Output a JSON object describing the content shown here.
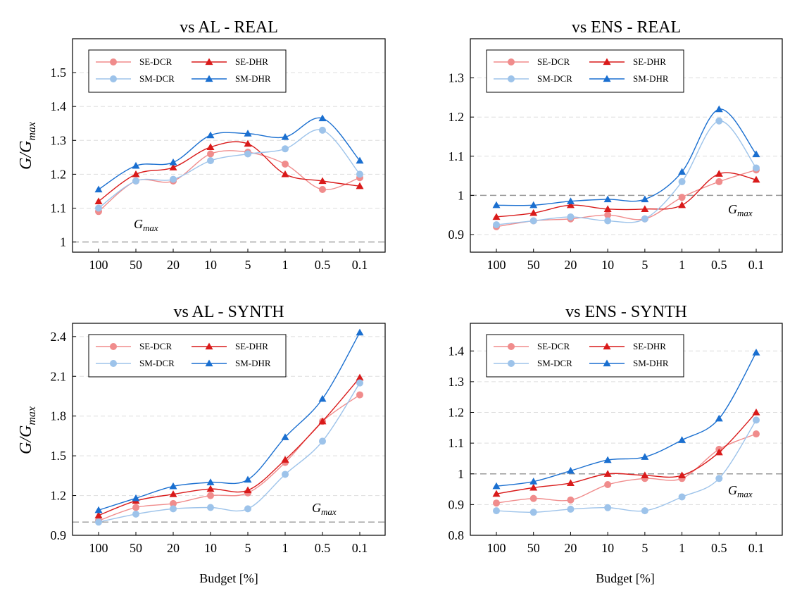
{
  "figure": {
    "ylabel_text": "G/G",
    "ylabel_sub": "max",
    "xlabel": "Budget [%]",
    "gmax_label": "G",
    "gmax_sub": "max"
  },
  "colors": {
    "SE-DCR": "#f08c8c",
    "SM-DCR": "#9dc3ea",
    "SE-DHR": "#d91a1a",
    "SM-DHR": "#1a6fd0",
    "reference": "#9a9a9a",
    "grid": "#dddddd"
  },
  "chart_data": [
    {
      "type": "line",
      "title": "vs AL - REAL",
      "categories": [
        "100",
        "50",
        "20",
        "10",
        "5",
        "1",
        "0.5",
        "0.1"
      ],
      "ylim": [
        0.97,
        1.6
      ],
      "yticks": [
        1,
        1.1,
        1.2,
        1.3,
        1.4,
        1.5
      ],
      "ytick_labels": [
        "1",
        "1.1",
        "1.2",
        "1.3",
        "1.4",
        "1.5"
      ],
      "reference_line": 1,
      "legend": "top-left",
      "grid": true,
      "series": [
        {
          "name": "SE-DCR",
          "marker": "circle",
          "values": [
            1.09,
            1.18,
            1.18,
            1.26,
            1.265,
            1.23,
            1.155,
            1.19
          ]
        },
        {
          "name": "SE-DHR",
          "marker": "triangle",
          "values": [
            1.12,
            1.2,
            1.22,
            1.28,
            1.29,
            1.2,
            1.18,
            1.165
          ]
        },
        {
          "name": "SM-DCR",
          "marker": "circle",
          "values": [
            1.1,
            1.18,
            1.185,
            1.24,
            1.26,
            1.275,
            1.33,
            1.2
          ]
        },
        {
          "name": "SM-DHR",
          "marker": "triangle",
          "values": [
            1.155,
            1.225,
            1.235,
            1.315,
            1.32,
            1.31,
            1.365,
            1.24
          ]
        }
      ]
    },
    {
      "type": "line",
      "title": "vs ENS - REAL",
      "categories": [
        "100",
        "50",
        "20",
        "10",
        "5",
        "1",
        "0.5",
        "0.1"
      ],
      "ylim": [
        0.855,
        1.4
      ],
      "yticks": [
        0.9,
        1,
        1.1,
        1.2,
        1.3
      ],
      "ytick_labels": [
        "0.9",
        "1",
        "1.1",
        "1.2",
        "1.3"
      ],
      "reference_line": 1,
      "legend": "top-left",
      "grid": true,
      "series": [
        {
          "name": "SE-DCR",
          "marker": "circle",
          "values": [
            0.92,
            0.935,
            0.94,
            0.95,
            0.94,
            0.995,
            1.035,
            1.065
          ]
        },
        {
          "name": "SE-DHR",
          "marker": "triangle",
          "values": [
            0.945,
            0.955,
            0.975,
            0.965,
            0.965,
            0.975,
            1.055,
            1.04
          ]
        },
        {
          "name": "SM-DCR",
          "marker": "circle",
          "values": [
            0.925,
            0.935,
            0.945,
            0.935,
            0.94,
            1.035,
            1.19,
            1.07
          ]
        },
        {
          "name": "SM-DHR",
          "marker": "triangle",
          "values": [
            0.975,
            0.975,
            0.985,
            0.99,
            0.99,
            1.06,
            1.22,
            1.105
          ]
        }
      ]
    },
    {
      "type": "line",
      "title": "vs AL - SYNTH",
      "categories": [
        "100",
        "50",
        "20",
        "10",
        "5",
        "1",
        "0.5",
        "0.1"
      ],
      "ylim": [
        0.9,
        2.5
      ],
      "yticks": [
        0.9,
        1.2,
        1.5,
        1.8,
        2.1,
        2.4
      ],
      "ytick_labels": [
        "0.9",
        "1.2",
        "1.5",
        "1.8",
        "2.1",
        "2.4"
      ],
      "reference_line": 1,
      "legend": "top-left",
      "grid": true,
      "series": [
        {
          "name": "SE-DCR",
          "marker": "circle",
          "values": [
            1.01,
            1.11,
            1.14,
            1.2,
            1.22,
            1.45,
            1.76,
            1.96
          ]
        },
        {
          "name": "SE-DHR",
          "marker": "triangle",
          "values": [
            1.05,
            1.16,
            1.21,
            1.25,
            1.24,
            1.47,
            1.76,
            2.09
          ]
        },
        {
          "name": "SM-DCR",
          "marker": "circle",
          "values": [
            1.0,
            1.06,
            1.1,
            1.11,
            1.1,
            1.36,
            1.61,
            2.05
          ]
        },
        {
          "name": "SM-DHR",
          "marker": "triangle",
          "values": [
            1.09,
            1.18,
            1.27,
            1.3,
            1.32,
            1.64,
            1.93,
            2.43
          ]
        }
      ]
    },
    {
      "type": "line",
      "title": "vs ENS - SYNTH",
      "categories": [
        "100",
        "50",
        "20",
        "10",
        "5",
        "1",
        "0.5",
        "0.1"
      ],
      "ylim": [
        0.8,
        1.49
      ],
      "yticks": [
        0.8,
        0.9,
        1,
        1.1,
        1.2,
        1.3,
        1.4
      ],
      "ytick_labels": [
        "0.8",
        "0.9",
        "1",
        "1.1",
        "1.2",
        "1.3",
        "1.4"
      ],
      "reference_line": 1,
      "legend": "top-left",
      "grid": true,
      "series": [
        {
          "name": "SE-DCR",
          "marker": "circle",
          "values": [
            0.905,
            0.92,
            0.915,
            0.965,
            0.985,
            0.985,
            1.08,
            1.13
          ]
        },
        {
          "name": "SE-DHR",
          "marker": "triangle",
          "values": [
            0.935,
            0.955,
            0.97,
            1.0,
            0.995,
            0.995,
            1.07,
            1.2
          ]
        },
        {
          "name": "SM-DCR",
          "marker": "circle",
          "values": [
            0.88,
            0.875,
            0.885,
            0.89,
            0.88,
            0.925,
            0.985,
            1.175
          ]
        },
        {
          "name": "SM-DHR",
          "marker": "triangle",
          "values": [
            0.96,
            0.975,
            1.01,
            1.045,
            1.055,
            1.11,
            1.18,
            1.395
          ]
        }
      ]
    }
  ]
}
